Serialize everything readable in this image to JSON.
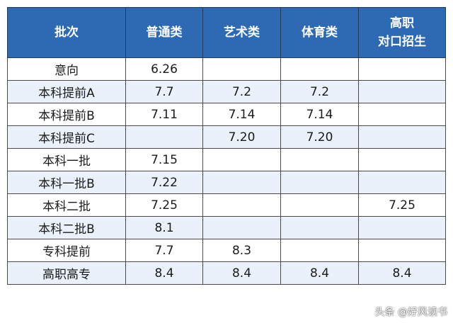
{
  "table": {
    "headers": [
      "批次",
      "普通类",
      "艺术类",
      "体育类",
      "高职\n对口招生"
    ],
    "rows": [
      [
        "意向",
        "6.26",
        "",
        "",
        ""
      ],
      [
        "本科提前A",
        "7.7",
        "7.2",
        "7.2",
        ""
      ],
      [
        "本科提前B",
        "7.11",
        "7.14",
        "7.14",
        ""
      ],
      [
        "本科提前C",
        "",
        "7.20",
        "7.20",
        ""
      ],
      [
        "本科一批",
        "7.15",
        "",
        "",
        ""
      ],
      [
        "本科一批B",
        "7.22",
        "",
        "",
        ""
      ],
      [
        "本科二批",
        "7.25",
        "",
        "",
        "7.25"
      ],
      [
        "本科二批B",
        "8.1",
        "",
        "",
        ""
      ],
      [
        "专科提前",
        "7.7",
        "8.3",
        "",
        ""
      ],
      [
        "高职高专",
        "8.4",
        "8.4",
        "8.4",
        "8.4"
      ]
    ]
  },
  "watermark": "头条 @好风读书",
  "colors": {
    "header_bg": "#2d6ab3",
    "header_text": "#ffffff",
    "alt_row_bg": "#eaf1fa",
    "border": "#4a4a4a"
  }
}
